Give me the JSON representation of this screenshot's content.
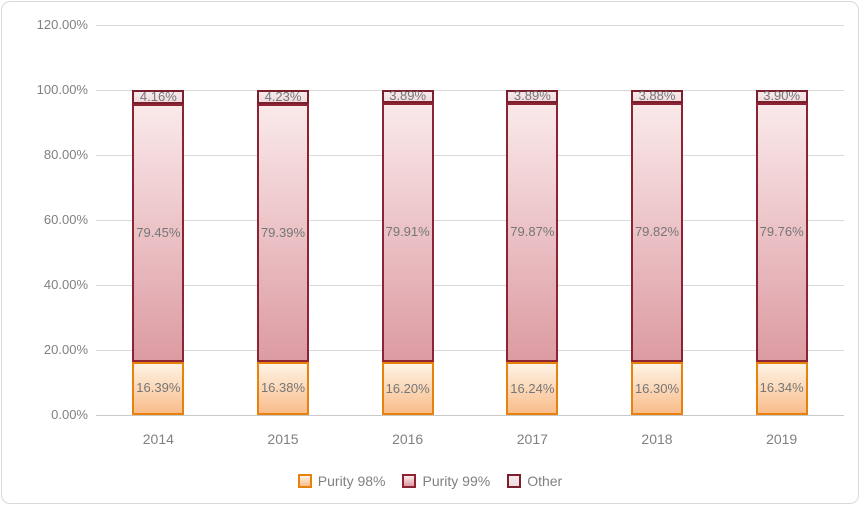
{
  "chart_data": {
    "type": "bar",
    "stacked": true,
    "title": "",
    "categories": [
      "2014",
      "2015",
      "2016",
      "2017",
      "2018",
      "2019"
    ],
    "series": [
      {
        "name": "Purity 98%",
        "values": [
          16.39,
          16.38,
          16.2,
          16.24,
          16.3,
          16.34
        ],
        "labels": [
          "16.39%",
          "16.38%",
          "16.20%",
          "16.24%",
          "16.30%",
          "16.34%"
        ],
        "border_color": "#E8820D",
        "fill_top": "#FEF3E5",
        "fill_bottom": "#F9BD8B"
      },
      {
        "name": "Purity 99%",
        "values": [
          79.45,
          79.39,
          79.91,
          79.87,
          79.82,
          79.76
        ],
        "labels": [
          "79.45%",
          "79.39%",
          "79.91%",
          "79.87%",
          "79.82%",
          "79.76%"
        ],
        "border_color": "#8E2433",
        "fill_top": "#FAE9EA",
        "fill_bottom": "#DC9BA2"
      },
      {
        "name": "Other",
        "values": [
          4.16,
          4.23,
          3.89,
          3.89,
          3.88,
          3.9
        ],
        "labels": [
          "4.16%",
          "4.23%",
          "3.89%",
          "3.89%",
          "3.88%",
          "3.90%"
        ],
        "border_color": "#7A1F2B",
        "fill_top": "#F7EAEC",
        "fill_bottom": "#F0DBDE"
      }
    ],
    "y_axis": {
      "min": 0,
      "max": 120,
      "tick_step": 20,
      "ticks": [
        {
          "value": 0,
          "label": "0.00%"
        },
        {
          "value": 20,
          "label": "20.00%"
        },
        {
          "value": 40,
          "label": "40.00%"
        },
        {
          "value": 60,
          "label": "60.00%"
        },
        {
          "value": 80,
          "label": "80.00%"
        },
        {
          "value": 100,
          "label": "100.00%"
        },
        {
          "value": 120,
          "label": "120.00%"
        }
      ]
    },
    "legend": {
      "position": "bottom",
      "entries": [
        "Purity 98%",
        "Purity 99%",
        "Other"
      ]
    },
    "grid": true,
    "colors": {
      "gridline": "#D9D9D9",
      "axis_line": "#C9C9C9",
      "tick_text": "#808080",
      "data_label_text": "#767676",
      "chart_border": "#D9D9D9",
      "background": "#FFFFFF"
    }
  }
}
